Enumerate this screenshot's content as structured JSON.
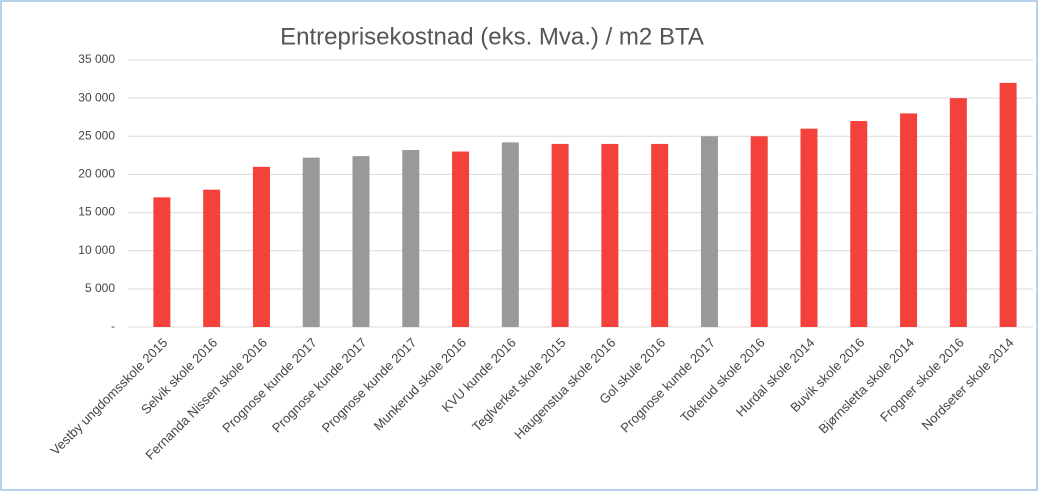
{
  "chart_data": {
    "type": "bar",
    "title": "Entreprisekostnad (eks. Mva.) / m2 BTA",
    "categories": [
      "Vestby ungdomsskole 2015",
      "Selvik skole 2016",
      "Fernanda Nissen skole 2016",
      "Prognose kunde 2017",
      "Prognose kunde 2017",
      "Prognose kunde 2017",
      "Munkerud skole 2016",
      "KVU kunde 2016",
      "Teglverket skole 2015",
      "Haugenstua skole 2016",
      "Gol skule 2016",
      "Prognose kunde 2017",
      "Tokerud skole 2016",
      "Hurdal skole 2014",
      "Buvik skole 2016",
      "Bjørnsletta skole 2014",
      "Frogner skole 2016",
      "Nordseter skole 2014"
    ],
    "values": [
      17000,
      18000,
      21000,
      22200,
      22400,
      23200,
      23000,
      24200,
      24000,
      24000,
      24000,
      25000,
      25000,
      26000,
      27000,
      28000,
      30000,
      32000
    ],
    "colors": [
      "#f5413b",
      "#f5413b",
      "#f5413b",
      "#999999",
      "#999999",
      "#999999",
      "#f5413b",
      "#999999",
      "#f5413b",
      "#f5413b",
      "#f5413b",
      "#999999",
      "#f5413b",
      "#f5413b",
      "#f5413b",
      "#f5413b",
      "#f5413b",
      "#f5413b"
    ],
    "ylim": [
      0,
      35000
    ],
    "yticks": [
      {
        "value": 0,
        "label": "-"
      },
      {
        "value": 5000,
        "label": "5 000"
      },
      {
        "value": 10000,
        "label": "10 000"
      },
      {
        "value": 15000,
        "label": "15 000"
      },
      {
        "value": 20000,
        "label": "20 000"
      },
      {
        "value": 25000,
        "label": "25 000"
      },
      {
        "value": 30000,
        "label": "30 000"
      },
      {
        "value": 35000,
        "label": "35 000"
      }
    ],
    "grid": true
  }
}
